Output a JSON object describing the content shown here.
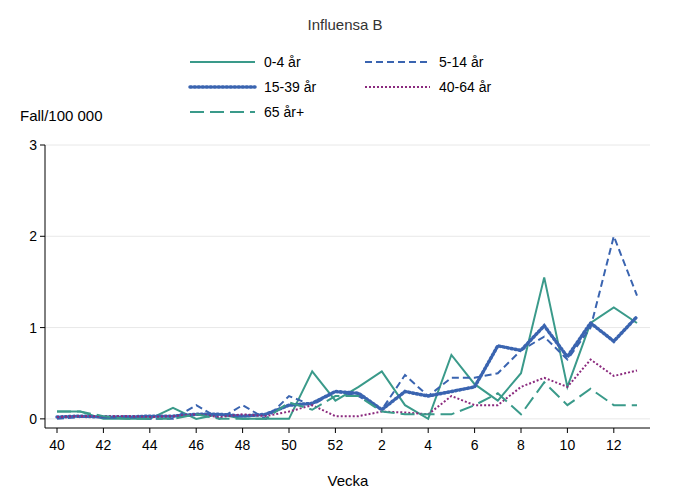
{
  "chart_data": {
    "type": "line",
    "title": "Influensa B",
    "x_label": "Vecka",
    "y_label": "Fall/100 000",
    "categories": [
      "40",
      null,
      "42",
      null,
      "44",
      null,
      "46",
      null,
      "48",
      null,
      "50",
      null,
      "52",
      null,
      "2",
      null,
      "4",
      null,
      "6",
      null,
      "8",
      null,
      "10",
      null,
      "12",
      null
    ],
    "ylim": [
      -0.1,
      3
    ],
    "yticks": [
      0,
      1,
      2,
      3
    ],
    "grid": true,
    "legend": "top",
    "series": [
      {
        "name": "0-4 år",
        "color": "#3a9a8a",
        "line_style": "solid",
        "values": [
          0.08,
          0.08,
          0,
          0,
          0,
          0.12,
          0,
          0.05,
          0,
          0,
          0,
          0.52,
          0.2,
          0.35,
          0.52,
          0.15,
          0,
          0.7,
          0.38,
          0.2,
          0.5,
          1.55,
          0.35,
          1.05,
          1.22,
          1.05
        ]
      },
      {
        "name": "5-14 år",
        "color": "#3a64b0",
        "line_style": "dashed",
        "values": [
          0,
          0.02,
          0.02,
          0.03,
          0,
          0,
          0.15,
          0,
          0.15,
          0,
          0.25,
          0.15,
          0.3,
          0.25,
          0.1,
          0.48,
          0.25,
          0.45,
          0.45,
          0.5,
          0.75,
          0.9,
          0.65,
          1.0,
          2.0,
          1.35
        ]
      },
      {
        "name": "15-39 år",
        "color": "#3a64b0",
        "line_style": "dotted",
        "values": [
          0.02,
          0.03,
          0.02,
          0.02,
          0.03,
          0.03,
          0.05,
          0.05,
          0.03,
          0.05,
          0.15,
          0.17,
          0.3,
          0.28,
          0.1,
          0.3,
          0.25,
          0.3,
          0.35,
          0.8,
          0.75,
          1.02,
          0.68,
          1.05,
          0.85,
          1.12
        ]
      },
      {
        "name": "40-64 år",
        "color": "#8b2a7e",
        "line_style": "fine-dotted",
        "values": [
          0.02,
          0.03,
          0.03,
          0.03,
          0.02,
          0.03,
          0.05,
          0.02,
          0.05,
          0.03,
          0.08,
          0.15,
          0.03,
          0.03,
          0.08,
          0.07,
          0.05,
          0.25,
          0.15,
          0.15,
          0.35,
          0.45,
          0.35,
          0.65,
          0.47,
          0.53
        ]
      },
      {
        "name": "65 år+",
        "color": "#3a9a8a",
        "line_style": "long-dashed",
        "values": [
          0.08,
          0.08,
          0.03,
          0,
          0,
          0,
          0.05,
          0,
          0,
          0,
          0.18,
          0.1,
          0.25,
          0.25,
          0.08,
          0.05,
          0.05,
          0.05,
          0.15,
          0.28,
          0.05,
          0.4,
          0.15,
          0.33,
          0.15,
          0.15
        ]
      }
    ]
  }
}
